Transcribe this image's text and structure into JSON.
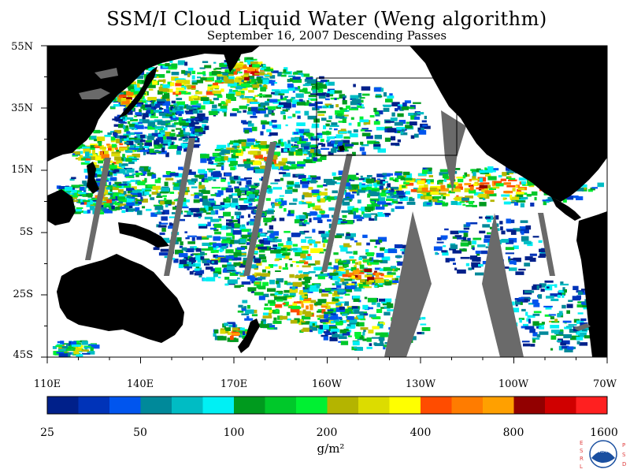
{
  "title": "SSM/I Cloud Liquid Water (Weng algorithm)",
  "subtitle": "September 16, 2007  Descending Passes",
  "latitude_labels": [
    "55N",
    "35N",
    "15N",
    "5S",
    "25S",
    "45S"
  ],
  "longitude_labels": [
    "110E",
    "140E",
    "170E",
    "160W",
    "130W",
    "100W",
    "70W"
  ],
  "colorbar": {
    "colors": [
      "#00208a",
      "#0033b8",
      "#0055ee",
      "#00899a",
      "#00bcc4",
      "#00f0f4",
      "#009a1e",
      "#00c82a",
      "#00f032",
      "#b4b400",
      "#dcdc00",
      "#ffff00",
      "#ff4c00",
      "#ff7c00",
      "#ffa000",
      "#920000",
      "#d00000",
      "#ff2020"
    ],
    "labels": [
      "25",
      "50",
      "100",
      "200",
      "400",
      "800",
      "1600"
    ],
    "unit": "g/m²"
  },
  "logo": {
    "left_letters": "ESRL",
    "right_letters": "PSD",
    "center_text": "NOAA"
  },
  "colors": {
    "land": "#000000",
    "no_data": "#6a6a6a",
    "clear": "#ffffff"
  }
}
